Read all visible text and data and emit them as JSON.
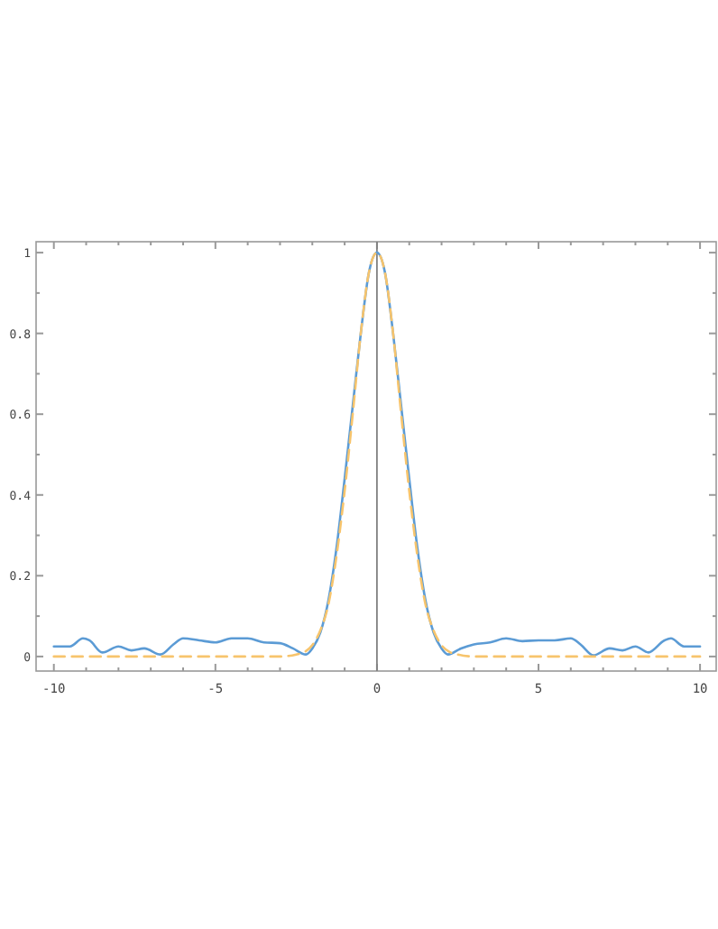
{
  "chart_data": {
    "type": "line",
    "xlim": [
      -10.55,
      10.5
    ],
    "ylim": [
      -0.036,
      1.027
    ],
    "xticks": [
      -10,
      {
        "value": -9,
        "label": null
      },
      {
        "value": -8,
        "label": null
      },
      {
        "value": -7,
        "label": null
      },
      {
        "value": -6,
        "label": null
      },
      -5,
      {
        "value": -4,
        "label": null
      },
      {
        "value": -3,
        "label": null
      },
      {
        "value": -2,
        "label": null
      },
      {
        "value": -1,
        "label": null
      },
      0,
      {
        "value": 1,
        "label": null
      },
      {
        "value": 2,
        "label": null
      },
      {
        "value": 3,
        "label": null
      },
      {
        "value": 4,
        "label": null
      },
      5,
      {
        "value": 6,
        "label": null
      },
      {
        "value": 7,
        "label": null
      },
      {
        "value": 8,
        "label": null
      },
      {
        "value": 9,
        "label": null
      },
      10
    ],
    "yticks": [
      0,
      {
        "value": 0.1,
        "label": null
      },
      0.2,
      {
        "value": 0.3,
        "label": null
      },
      0.4,
      {
        "value": 0.5,
        "label": null
      },
      0.6,
      {
        "value": 0.7,
        "label": null
      },
      0.8,
      {
        "value": 0.9,
        "label": null
      },
      1
    ],
    "grid": false,
    "ref_lines": [
      {
        "axis": "x",
        "value": 0,
        "color": "#808080"
      }
    ],
    "series": [
      {
        "color": "#5b9bd5",
        "line_style": "solid",
        "x": [
          -10,
          -9.5,
          -9.1,
          -8.9,
          -8.5,
          -8,
          -7.6,
          -7.2,
          -6.7,
          -6.3,
          -6,
          -5.5,
          -5,
          -4.5,
          -4,
          -3.5,
          -3,
          -2.6,
          -2.2,
          -2,
          -1.75,
          -1.5,
          -1.25,
          -1,
          -0.75,
          -0.5,
          -0.25,
          0,
          0.25,
          0.5,
          0.75,
          1,
          1.25,
          1.5,
          1.75,
          2,
          2.2,
          2.6,
          3,
          3.5,
          4,
          4.5,
          5,
          5.5,
          6,
          6.3,
          6.7,
          7.2,
          7.6,
          8,
          8.4,
          8.9,
          9.1,
          9.5,
          10
        ],
        "values": [
          0.025,
          0.025,
          0.045,
          0.04,
          0.01,
          0.025,
          0.015,
          0.02,
          0.005,
          0.03,
          0.045,
          0.04,
          0.035,
          0.045,
          0.045,
          0.035,
          0.033,
          0.02,
          0.005,
          0.02,
          0.06,
          0.14,
          0.27,
          0.44,
          0.62,
          0.8,
          0.95,
          1,
          0.95,
          0.8,
          0.62,
          0.44,
          0.27,
          0.14,
          0.06,
          0.02,
          0.005,
          0.02,
          0.03,
          0.035,
          0.045,
          0.038,
          0.04,
          0.04,
          0.045,
          0.03,
          0.003,
          0.02,
          0.015,
          0.025,
          0.01,
          0.04,
          0.045,
          0.025,
          0.025
        ]
      },
      {
        "color": "#f7c46c",
        "line_style": "dashed",
        "x": [
          -10,
          -4,
          -3,
          -2.5,
          -2.25,
          -2,
          -1.75,
          -1.5,
          -1.25,
          -1,
          -0.75,
          -0.5,
          -0.25,
          0,
          0.25,
          0.5,
          0.75,
          1,
          1.25,
          1.5,
          1.75,
          2,
          2.25,
          2.5,
          3,
          4,
          10
        ],
        "values": [
          0,
          0,
          0,
          0.005,
          0.011,
          0.028,
          0.065,
          0.13,
          0.25,
          0.41,
          0.6,
          0.8,
          0.95,
          1,
          0.95,
          0.8,
          0.6,
          0.41,
          0.25,
          0.13,
          0.065,
          0.028,
          0.011,
          0.005,
          0,
          0,
          0
        ]
      }
    ]
  }
}
